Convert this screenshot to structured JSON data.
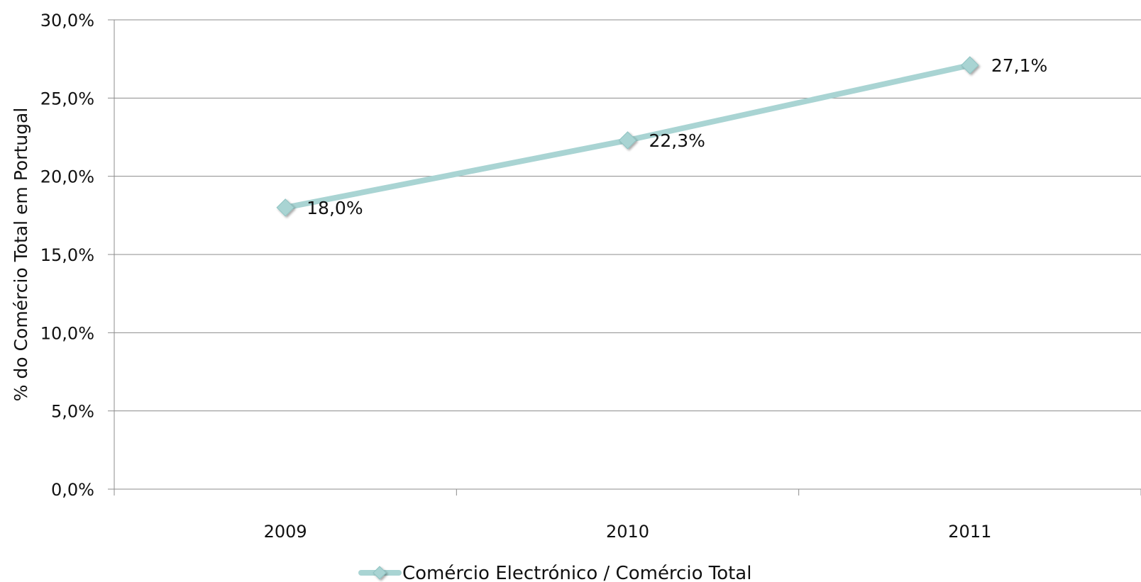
{
  "chart_data": {
    "type": "line",
    "categories": [
      "2009",
      "2010",
      "2011"
    ],
    "series": [
      {
        "name": "Comércio Electrónico / Comércio Total",
        "values": [
          18.0,
          22.3,
          27.1
        ],
        "data_labels": [
          "18,0%",
          "22,3%",
          "27,1%"
        ],
        "color": "#a9d4d3"
      }
    ],
    "title": "",
    "xlabel": "",
    "ylabel": "% do Comércio Total em Portugal",
    "ylim": [
      0,
      30
    ],
    "y_ticks": [
      0,
      5,
      10,
      15,
      20,
      25,
      30
    ],
    "y_tick_labels": [
      "0,0%",
      "5,0%",
      "10,0%",
      "15,0%",
      "20,0%",
      "25,0%",
      "30,0%"
    ],
    "grid": true,
    "legend_position": "bottom",
    "marker": "diamond",
    "colors": {
      "gridline": "#8c8c8c",
      "axis": "#8c8c8c",
      "line": "#a9d4d3",
      "marker": "#a9d4d3"
    }
  }
}
